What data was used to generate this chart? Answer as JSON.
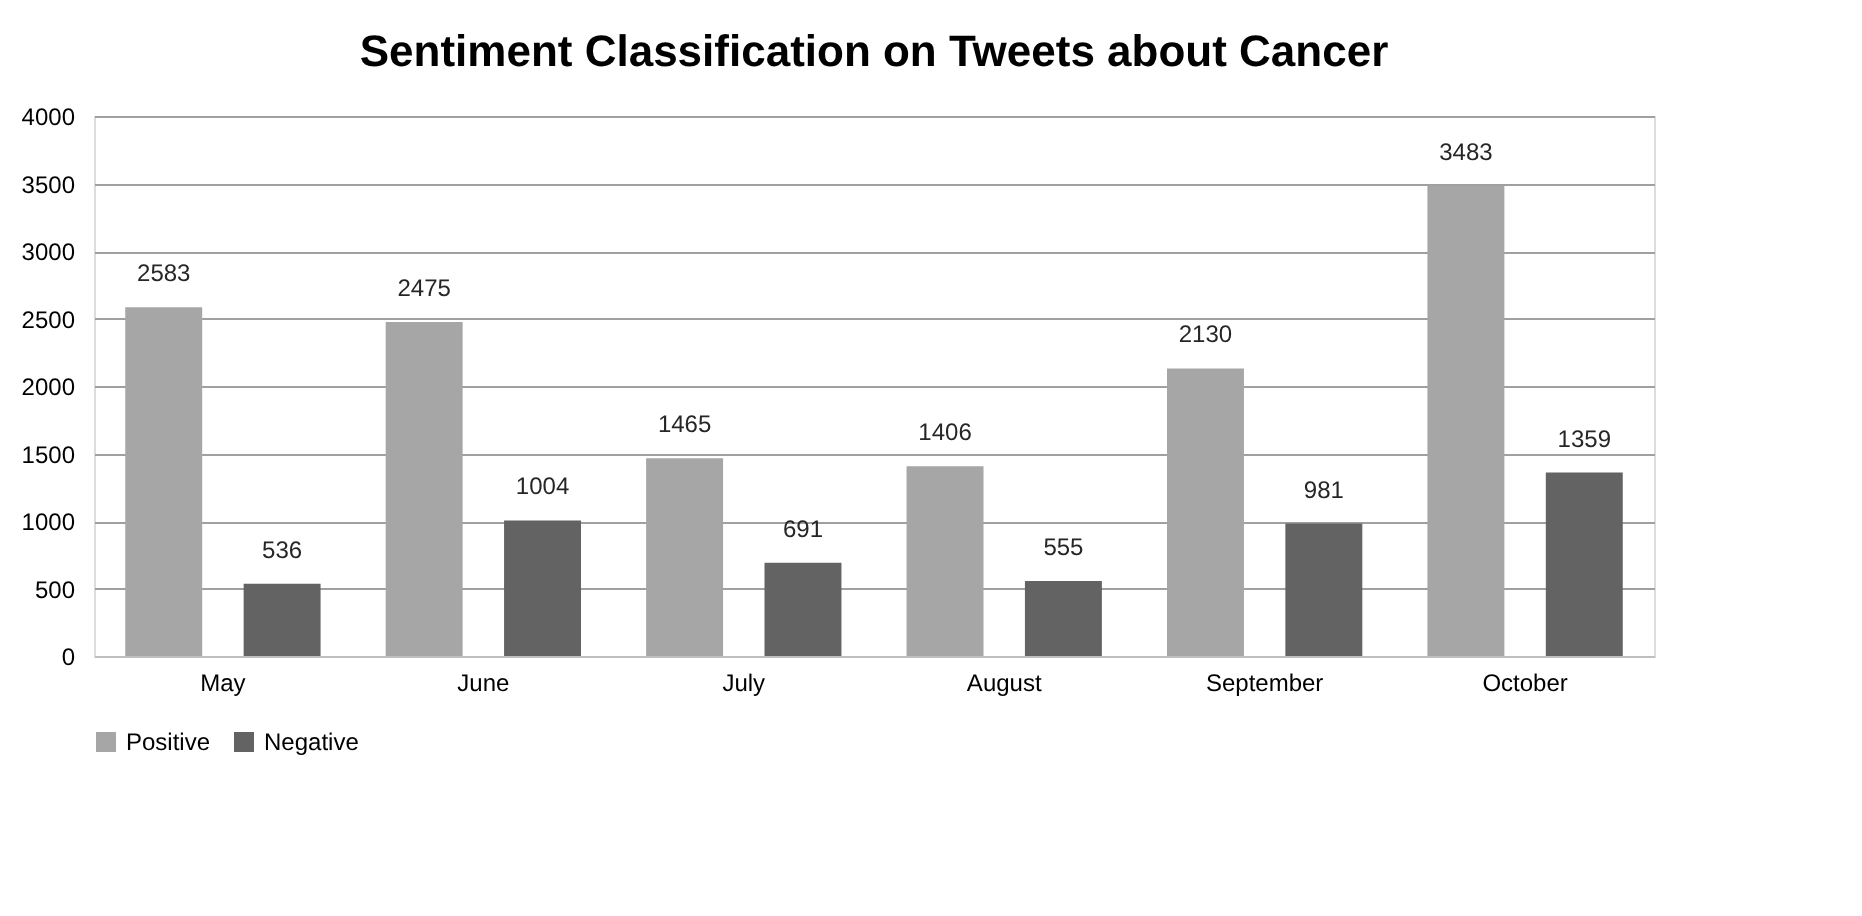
{
  "chart_data": {
    "type": "bar",
    "title": "Sentiment Classification on Tweets about Cancer",
    "categories": [
      "May",
      "June",
      "July",
      "August",
      "September",
      "October"
    ],
    "series": [
      {
        "name": "Positive",
        "color": "#a6a6a6",
        "values": [
          2583,
          2475,
          1465,
          1406,
          2130,
          3483
        ]
      },
      {
        "name": "Negative",
        "color": "#636363",
        "values": [
          536,
          1004,
          691,
          555,
          981,
          1359
        ]
      }
    ],
    "ylim": [
      0,
      4000
    ],
    "yticks": [
      0,
      500,
      1000,
      1500,
      2000,
      2500,
      3000,
      3500,
      4000
    ],
    "grid": "y",
    "legend": "bottom",
    "data_labels": true
  }
}
